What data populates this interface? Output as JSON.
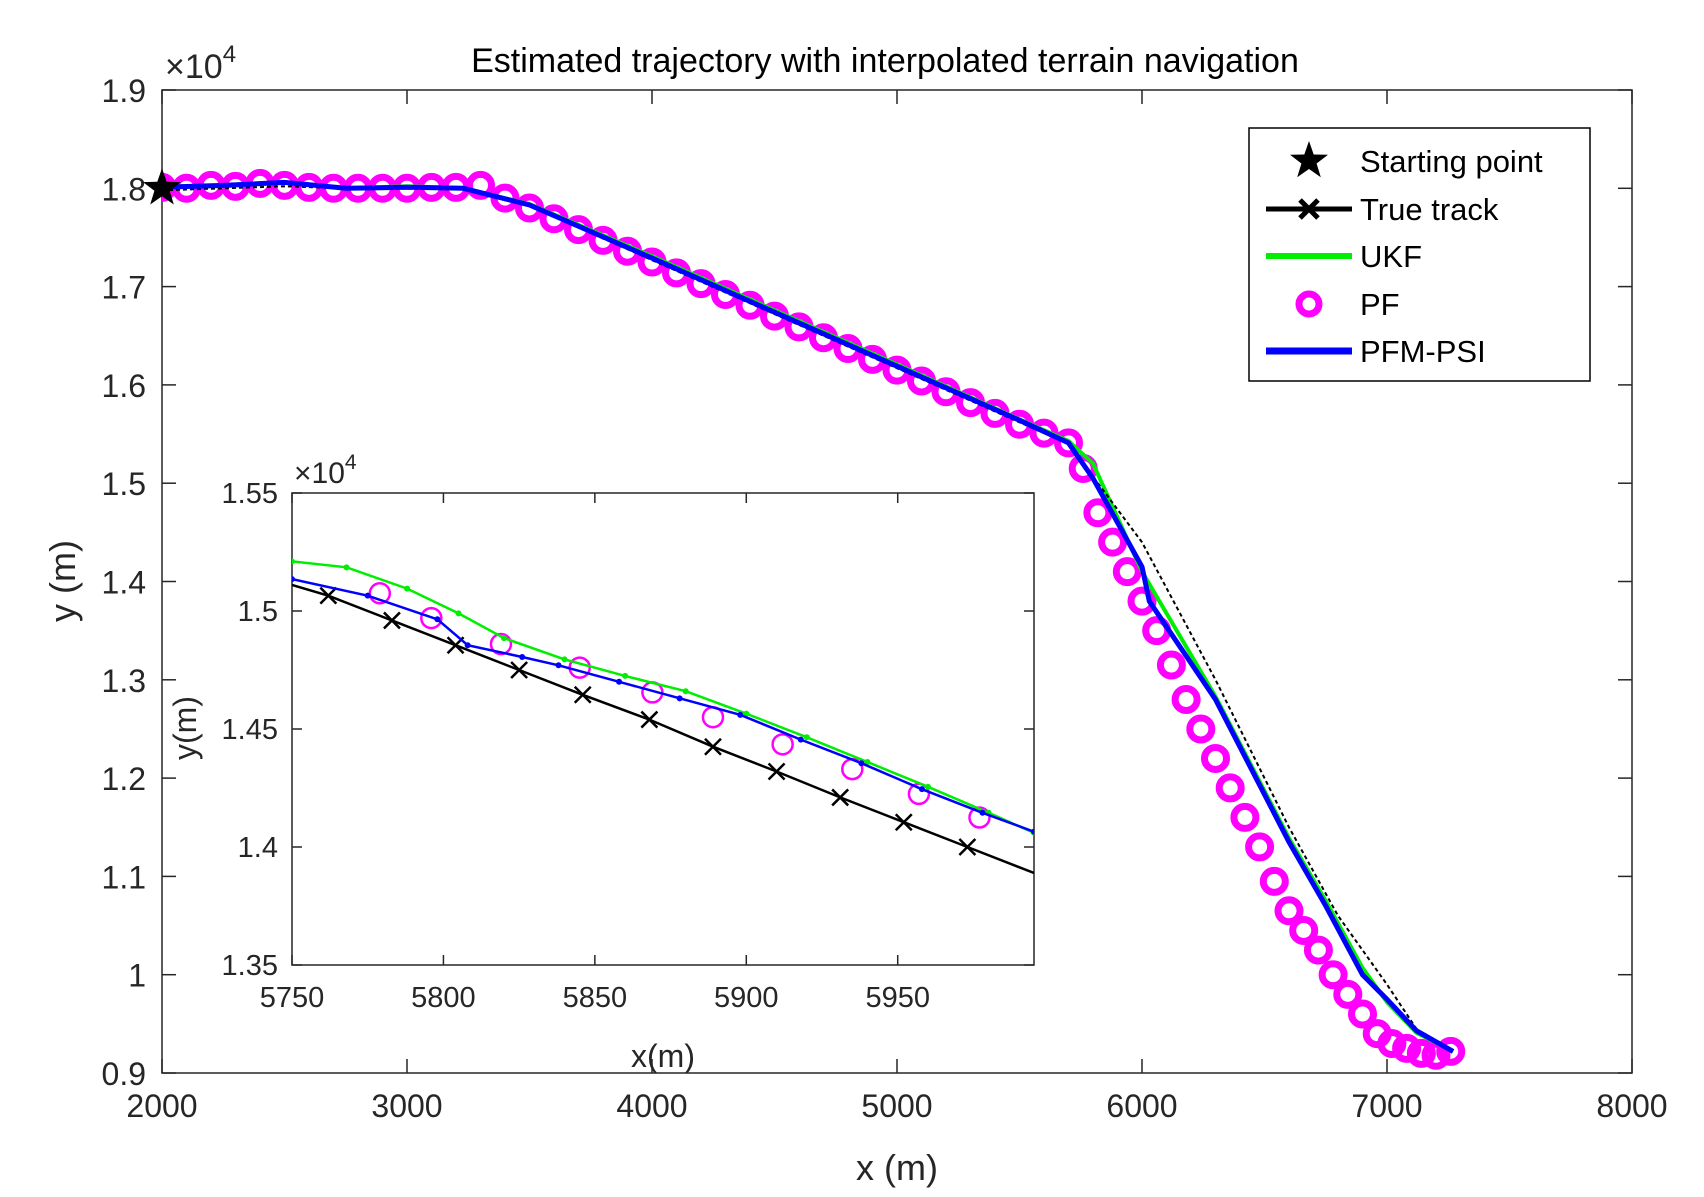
{
  "chart_data": [
    {
      "type": "line",
      "title": "Estimated trajectory with interpolated terrain navigation",
      "xlabel": "x (m)",
      "ylabel": "y (m)",
      "xlim": [
        2000,
        8000
      ],
      "ylim": [
        0.9,
        1.9
      ],
      "y_exponent_label": "×10",
      "y_exponent": "4",
      "xticks": [
        2000,
        3000,
        4000,
        5000,
        6000,
        7000,
        8000
      ],
      "yticks": [
        0.9,
        1,
        1.1,
        1.2,
        1.3,
        1.4,
        1.5,
        1.6,
        1.7,
        1.8,
        1.9
      ],
      "ytick_labels": [
        "0.9",
        "1",
        "1.1",
        "1.2",
        "1.3",
        "1.4",
        "1.5",
        "1.6",
        "1.7",
        "1.8",
        "1.9"
      ],
      "legend_position": "top-right",
      "legend": [
        {
          "name": "Starting point",
          "color": "#000000",
          "style": "star"
        },
        {
          "name": "True track",
          "color": "#000000",
          "style": "line-x"
        },
        {
          "name": "UKF",
          "color": "#00ee00",
          "style": "line"
        },
        {
          "name": "PF",
          "color": "#ff00ff",
          "style": "circle"
        },
        {
          "name": "PFM-PSI",
          "color": "#0000ff",
          "style": "line-thick"
        }
      ],
      "starting_point": {
        "x": 2000,
        "y": 1.8
      },
      "series": [
        {
          "name": "True track",
          "color": "#000000",
          "x": [
            2000,
            2250,
            2500,
            2750,
            3000,
            3230,
            3500,
            4000,
            4500,
            5000,
            5500,
            5700,
            6000,
            6300,
            6600,
            6800,
            7000,
            7120,
            7270
          ],
          "y": [
            1.798,
            1.8,
            1.802,
            1.8,
            1.8,
            1.8,
            1.782,
            1.727,
            1.672,
            1.617,
            1.562,
            1.54,
            1.44,
            1.3,
            1.15,
            1.06,
            0.99,
            0.945,
            0.92
          ]
        },
        {
          "name": "UKF",
          "color": "#00ee00",
          "x": [
            2000,
            2250,
            2500,
            2750,
            3000,
            3230,
            3500,
            4000,
            4500,
            5000,
            5500,
            5700,
            5800,
            6000,
            6300,
            6600,
            6750,
            6900,
            7000,
            7120,
            7270
          ],
          "y": [
            1.802,
            1.802,
            1.806,
            1.8,
            1.802,
            1.8,
            1.784,
            1.731,
            1.676,
            1.621,
            1.565,
            1.543,
            1.52,
            1.41,
            1.283,
            1.139,
            1.075,
            1.007,
            0.972,
            0.941,
            0.922
          ]
        },
        {
          "name": "PF",
          "color": "#ff00ff",
          "x": [
            2000,
            2100,
            2200,
            2300,
            2400,
            2500,
            2600,
            2700,
            2800,
            2900,
            3000,
            3100,
            3200,
            3300,
            3400,
            3500,
            3600,
            3700,
            3800,
            3900,
            4000,
            4100,
            4200,
            4300,
            4400,
            4500,
            4600,
            4700,
            4800,
            4900,
            5000,
            5100,
            5200,
            5300,
            5400,
            5500,
            5600,
            5700,
            5760,
            5820,
            5880,
            5940,
            6000,
            6060,
            6120,
            6180,
            6240,
            6300,
            6360,
            6420,
            6480,
            6540,
            6600,
            6660,
            6720,
            6780,
            6840,
            6900,
            6960,
            7020,
            7080,
            7140,
            7200,
            7260
          ],
          "y": [
            1.801,
            1.8,
            1.803,
            1.802,
            1.805,
            1.803,
            1.801,
            1.8,
            1.8,
            1.8,
            1.8,
            1.801,
            1.801,
            1.803,
            1.79,
            1.78,
            1.769,
            1.758,
            1.747,
            1.736,
            1.725,
            1.714,
            1.703,
            1.692,
            1.681,
            1.67,
            1.659,
            1.648,
            1.637,
            1.626,
            1.615,
            1.604,
            1.593,
            1.582,
            1.571,
            1.56,
            1.551,
            1.541,
            1.515,
            1.47,
            1.44,
            1.41,
            1.38,
            1.35,
            1.315,
            1.28,
            1.25,
            1.22,
            1.19,
            1.16,
            1.13,
            1.095,
            1.065,
            1.045,
            1.025,
            1.0,
            0.98,
            0.96,
            0.94,
            0.93,
            0.925,
            0.92,
            0.918,
            0.922
          ]
        },
        {
          "name": "PFM-PSI",
          "color": "#0000ff",
          "x": [
            2000,
            2250,
            2500,
            2750,
            3000,
            3230,
            3500,
            4000,
            4500,
            5000,
            5500,
            5700,
            5800,
            6000,
            6030,
            6300,
            6600,
            6750,
            6900,
            7000,
            7120,
            7270
          ],
          "y": [
            1.801,
            1.803,
            1.806,
            1.8,
            1.801,
            1.8,
            1.783,
            1.729,
            1.674,
            1.619,
            1.564,
            1.541,
            1.505,
            1.415,
            1.38,
            1.28,
            1.135,
            1.07,
            1.0,
            0.975,
            0.943,
            0.922
          ]
        }
      ]
    },
    {
      "type": "line",
      "title": "",
      "xlabel": "x(m)",
      "ylabel": "y(m)",
      "xlim": [
        5750,
        5995
      ],
      "ylim": [
        1.35,
        1.55
      ],
      "y_exponent_label": "×10",
      "y_exponent": "4",
      "xticks": [
        5750,
        5800,
        5850,
        5900,
        5950
      ],
      "yticks": [
        1.35,
        1.4,
        1.45,
        1.5,
        1.55
      ],
      "ytick_labels": [
        "1.35",
        "1.4",
        "1.45",
        "1.5",
        "1.55"
      ],
      "series": [
        {
          "name": "True track",
          "color": "#000000",
          "x": [
            5750,
            5762,
            5783,
            5804,
            5825,
            5846,
            5868,
            5889,
            5910,
            5931,
            5952,
            5973,
            5995
          ],
          "y": [
            1.511,
            1.5065,
            1.496,
            1.4855,
            1.475,
            1.4645,
            1.454,
            1.4425,
            1.432,
            1.421,
            1.4105,
            1.4,
            1.389
          ]
        },
        {
          "name": "UKF",
          "color": "#00ee00",
          "x": [
            5750,
            5768,
            5788,
            5805,
            5820,
            5840,
            5860,
            5880,
            5900,
            5920,
            5940,
            5960,
            5980,
            5995
          ],
          "y": [
            1.521,
            1.5185,
            1.5095,
            1.499,
            1.4885,
            1.4795,
            1.4725,
            1.466,
            1.4565,
            1.4465,
            1.436,
            1.4255,
            1.4145,
            1.406
          ]
        },
        {
          "name": "PF",
          "color": "#ff00ff",
          "x": [
            5779,
            5796,
            5819,
            5845,
            5869,
            5889,
            5912,
            5935,
            5957,
            5977
          ],
          "y": [
            1.5075,
            1.497,
            1.486,
            1.476,
            1.4655,
            1.455,
            1.4435,
            1.433,
            1.4225,
            1.4125
          ]
        },
        {
          "name": "PFM-PSI",
          "color": "#0000ff",
          "x": [
            5750,
            5775,
            5798,
            5808,
            5826,
            5838,
            5858,
            5878,
            5898,
            5918,
            5938,
            5958,
            5978,
            5995
          ],
          "y": [
            1.5135,
            1.5065,
            1.4965,
            1.4855,
            1.4805,
            1.477,
            1.47,
            1.463,
            1.456,
            1.4455,
            1.4355,
            1.4245,
            1.4145,
            1.4065
          ]
        }
      ]
    }
  ]
}
